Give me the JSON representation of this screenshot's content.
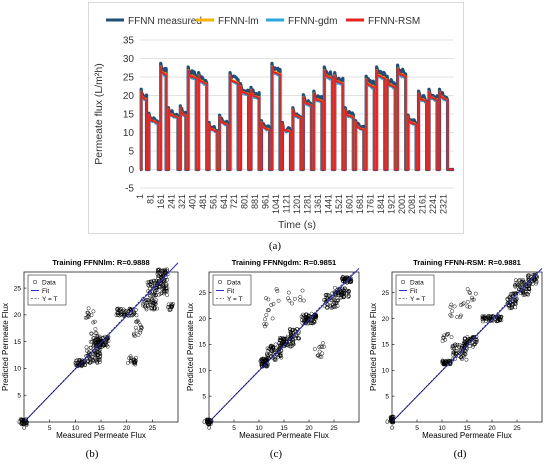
{
  "chart_data": [
    {
      "type": "line",
      "panel_label": "(a)",
      "title": "",
      "xlabel": "Time (s)",
      "ylabel": "Permeate flux (L/m²h)",
      "ylim": [
        -5,
        35
      ],
      "yticks": [
        -5,
        0,
        5,
        10,
        15,
        20,
        25,
        30,
        35
      ],
      "xlim": [
        1,
        2400
      ],
      "xticks": [
        "1",
        "81",
        "161",
        "241",
        "321",
        "401",
        "481",
        "561",
        "641",
        "721",
        "801",
        "881",
        "961",
        "1041",
        "1121",
        "1201",
        "1281",
        "1361",
        "1441",
        "1521",
        "1601",
        "1681",
        "1761",
        "1841",
        "1921",
        "2001",
        "2081",
        "2161",
        "2241",
        "2321"
      ],
      "grid": true,
      "legend_position": "top",
      "series": [
        {
          "name": "FFNN measured",
          "color": "#1f4e79"
        },
        {
          "name": "FFNN-lm",
          "color": "#f5b400"
        },
        {
          "name": "FFNN-gdm",
          "color": "#2aa7e0"
        },
        {
          "name": "FFNN-RSM",
          "color": "#e8231f"
        }
      ],
      "segments": [
        {
          "start": 1,
          "end": 60,
          "value": 20.5
        },
        {
          "start": 60,
          "end": 150,
          "value": 14.0
        },
        {
          "start": 150,
          "end": 210,
          "value": 27.5
        },
        {
          "start": 210,
          "end": 300,
          "value": 15.5
        },
        {
          "start": 300,
          "end": 360,
          "value": 16.0
        },
        {
          "start": 360,
          "end": 440,
          "value": 26.5
        },
        {
          "start": 440,
          "end": 520,
          "value": 25.0
        },
        {
          "start": 520,
          "end": 600,
          "value": 11.5
        },
        {
          "start": 600,
          "end": 680,
          "value": 13.5
        },
        {
          "start": 680,
          "end": 760,
          "value": 25.0
        },
        {
          "start": 760,
          "end": 840,
          "value": 22.0
        },
        {
          "start": 840,
          "end": 920,
          "value": 21.0
        },
        {
          "start": 920,
          "end": 1000,
          "value": 12.0
        },
        {
          "start": 1000,
          "end": 1080,
          "value": 27.5
        },
        {
          "start": 1080,
          "end": 1160,
          "value": 11.5
        },
        {
          "start": 1160,
          "end": 1240,
          "value": 15.5
        },
        {
          "start": 1240,
          "end": 1320,
          "value": 19.0
        },
        {
          "start": 1320,
          "end": 1400,
          "value": 20.0
        },
        {
          "start": 1400,
          "end": 1480,
          "value": 26.5
        },
        {
          "start": 1480,
          "end": 1560,
          "value": 25.0
        },
        {
          "start": 1560,
          "end": 1640,
          "value": 15.5
        },
        {
          "start": 1640,
          "end": 1720,
          "value": 12.0
        },
        {
          "start": 1720,
          "end": 1800,
          "value": 24.0
        },
        {
          "start": 1800,
          "end": 1880,
          "value": 26.5
        },
        {
          "start": 1880,
          "end": 1960,
          "value": 24.0
        },
        {
          "start": 1960,
          "end": 2040,
          "value": 27.0
        },
        {
          "start": 2040,
          "end": 2120,
          "value": 13.5
        },
        {
          "start": 2120,
          "end": 2200,
          "value": 20.0
        },
        {
          "start": 2200,
          "end": 2280,
          "value": 20.5
        },
        {
          "start": 2280,
          "end": 2360,
          "value": 20.5
        }
      ]
    },
    {
      "type": "scatter",
      "panel_label": "(b)",
      "title": "Training FFNNlm: R=0.9888",
      "xlabel": "Measured Permeate Flux",
      "ylabel": "Predicted Permeate Flux",
      "xlim": [
        0,
        30
      ],
      "ylim": [
        0,
        28
      ],
      "xticks": [
        0,
        5,
        10,
        15,
        20,
        25
      ],
      "yticks": [
        0,
        5,
        10,
        15,
        20,
        25
      ],
      "legend": [
        "Data",
        "Fit",
        "Y = T"
      ],
      "legend_position": "top-left",
      "clusters": [
        [
          0,
          0,
          0.6,
          0.6,
          30
        ],
        [
          11,
          11,
          1,
          0.6,
          40
        ],
        [
          13.5,
          12.5,
          1.5,
          1.5,
          60
        ],
        [
          15,
          15,
          1.5,
          1,
          70
        ],
        [
          13,
          20,
          1,
          1.5,
          12
        ],
        [
          14,
          15.5,
          1,
          2,
          15
        ],
        [
          20,
          20.5,
          2,
          0.7,
          50
        ],
        [
          21,
          11.5,
          0.8,
          0.8,
          20
        ],
        [
          22,
          17.5,
          1,
          1.5,
          16
        ],
        [
          24.5,
          22,
          1.5,
          1,
          40
        ],
        [
          26,
          25,
          2,
          1.5,
          80
        ],
        [
          27,
          27.5,
          1,
          1,
          40
        ],
        [
          28.5,
          21.5,
          0.6,
          0.6,
          16
        ]
      ]
    },
    {
      "type": "scatter",
      "panel_label": "(c)",
      "title": "Training FFNNgdm: R=0.9851",
      "xlabel": "Measured Permeate Flux",
      "ylabel": "Predicted Permeate Flux",
      "xlim": [
        0,
        30
      ],
      "ylim": [
        0,
        29
      ],
      "xticks": [
        0,
        5,
        10,
        15,
        20,
        25
      ],
      "yticks": [
        0,
        5,
        10,
        15,
        20,
        25
      ],
      "legend": [
        "Data",
        "Fit",
        "Y = T"
      ],
      "legend_position": "top-left",
      "clusters": [
        [
          0,
          0,
          0.5,
          0.5,
          30
        ],
        [
          11,
          11.5,
          0.8,
          0.8,
          50
        ],
        [
          13,
          13.5,
          1.5,
          1.5,
          60
        ],
        [
          15.5,
          15.5,
          1.5,
          1,
          60
        ],
        [
          17,
          17,
          1,
          1,
          30
        ],
        [
          20,
          20,
          1.5,
          1,
          70
        ],
        [
          12,
          21,
          1,
          3,
          12
        ],
        [
          16,
          24,
          3,
          2,
          12
        ],
        [
          22,
          14,
          1,
          1.5,
          12
        ],
        [
          24.5,
          23.5,
          1.5,
          1.5,
          45
        ],
        [
          26.5,
          25,
          1.5,
          1,
          50
        ],
        [
          27.5,
          27.5,
          1,
          0.6,
          40
        ]
      ]
    },
    {
      "type": "scatter",
      "panel_label": "(d)",
      "title": "Training FFNN-RSM: R=0.9881",
      "xlabel": "Measured Permeate Flux",
      "ylabel": "Predicted Permeate Flux",
      "xlim": [
        0,
        30
      ],
      "ylim": [
        0,
        29
      ],
      "xticks": [
        0,
        5,
        10,
        15,
        20,
        25
      ],
      "yticks": [
        0,
        5,
        10,
        15,
        20,
        25
      ],
      "legend": [
        "Data",
        "Fit",
        "Y = T"
      ],
      "legend_position": "top-left",
      "clusters": [
        [
          0,
          0.5,
          0.3,
          0.6,
          30
        ],
        [
          11,
          11.5,
          1,
          0.4,
          40
        ],
        [
          13.5,
          13.5,
          1.5,
          1.5,
          50
        ],
        [
          15.5,
          15.5,
          1.5,
          1,
          50
        ],
        [
          20,
          20,
          2,
          0.6,
          60
        ],
        [
          13,
          21,
          1.5,
          2,
          12
        ],
        [
          11,
          16.5,
          1,
          1,
          10
        ],
        [
          16,
          24,
          1,
          2,
          10
        ],
        [
          24,
          23.5,
          1,
          1.5,
          40
        ],
        [
          26,
          26,
          1.5,
          1.5,
          60
        ],
        [
          28,
          27.5,
          1,
          1,
          30
        ]
      ]
    }
  ]
}
